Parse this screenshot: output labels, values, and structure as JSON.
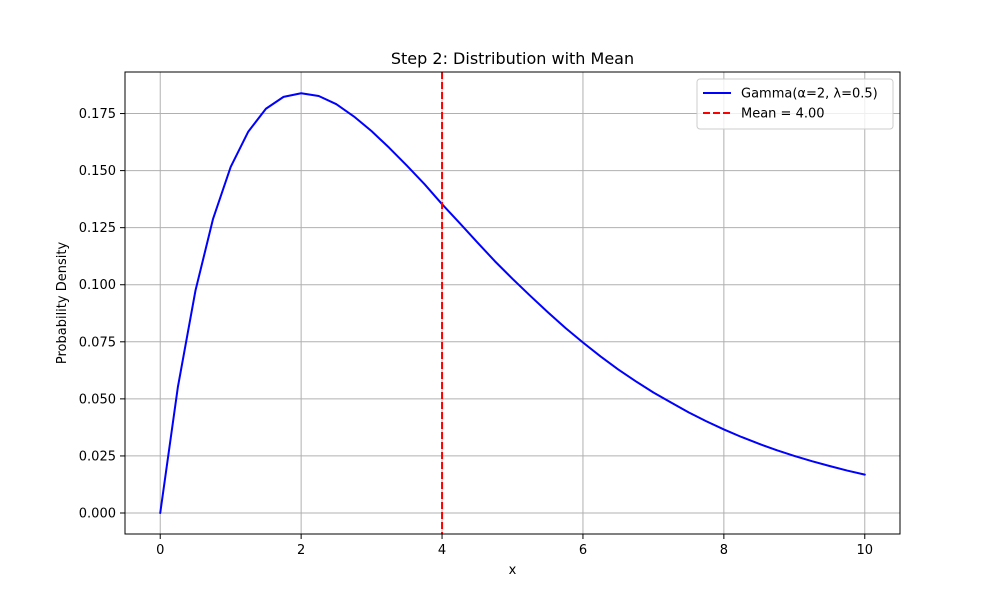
{
  "chart_data": {
    "type": "line",
    "title": "Step 2: Distribution with Mean",
    "xlabel": "x",
    "ylabel": "Probability Density",
    "xlim": [
      -0.5,
      10.5
    ],
    "ylim": [
      -0.0092,
      0.1932
    ],
    "x_ticks": [
      0,
      2,
      4,
      6,
      8,
      10
    ],
    "x_tick_labels": [
      "0",
      "2",
      "4",
      "6",
      "8",
      "10"
    ],
    "y_ticks": [
      0.0,
      0.025,
      0.05,
      0.075,
      0.1,
      0.125,
      0.15,
      0.175
    ],
    "y_tick_labels": [
      "0.000",
      "0.025",
      "0.050",
      "0.075",
      "0.100",
      "0.125",
      "0.150",
      "0.175"
    ],
    "grid": true,
    "legend_position": "top-right",
    "series": [
      {
        "name": "Gamma(α=2, λ=0.5)",
        "color": "#0000ff",
        "style": "solid",
        "x": [
          0,
          0.25,
          0.5,
          0.75,
          1,
          1.25,
          1.5,
          1.75,
          2,
          2.25,
          2.5,
          2.75,
          3,
          3.25,
          3.5,
          3.75,
          4,
          4.25,
          4.5,
          4.75,
          5,
          5.25,
          5.5,
          5.75,
          6,
          6.25,
          6.5,
          6.75,
          7,
          7.25,
          7.5,
          7.75,
          8,
          8.25,
          8.5,
          8.75,
          9,
          9.25,
          9.5,
          9.75,
          10
        ],
        "values": [
          0,
          0.0551,
          0.0974,
          0.1289,
          0.1516,
          0.1671,
          0.1771,
          0.1823,
          0.1839,
          0.1827,
          0.1791,
          0.1737,
          0.1673,
          0.16,
          0.1522,
          0.1441,
          0.1353,
          0.127,
          0.1186,
          0.1103,
          0.1026,
          0.0952,
          0.088,
          0.0811,
          0.0747,
          0.0686,
          0.0629,
          0.0577,
          0.0528,
          0.0484,
          0.0441,
          0.0402,
          0.0366,
          0.0333,
          0.0303,
          0.0275,
          0.025,
          0.0227,
          0.0206,
          0.0186,
          0.0168
        ]
      },
      {
        "name": "Mean = 4.00",
        "color": "#ff0000",
        "style": "dashed",
        "orientation": "vertical",
        "x_value": 4.0
      }
    ]
  }
}
